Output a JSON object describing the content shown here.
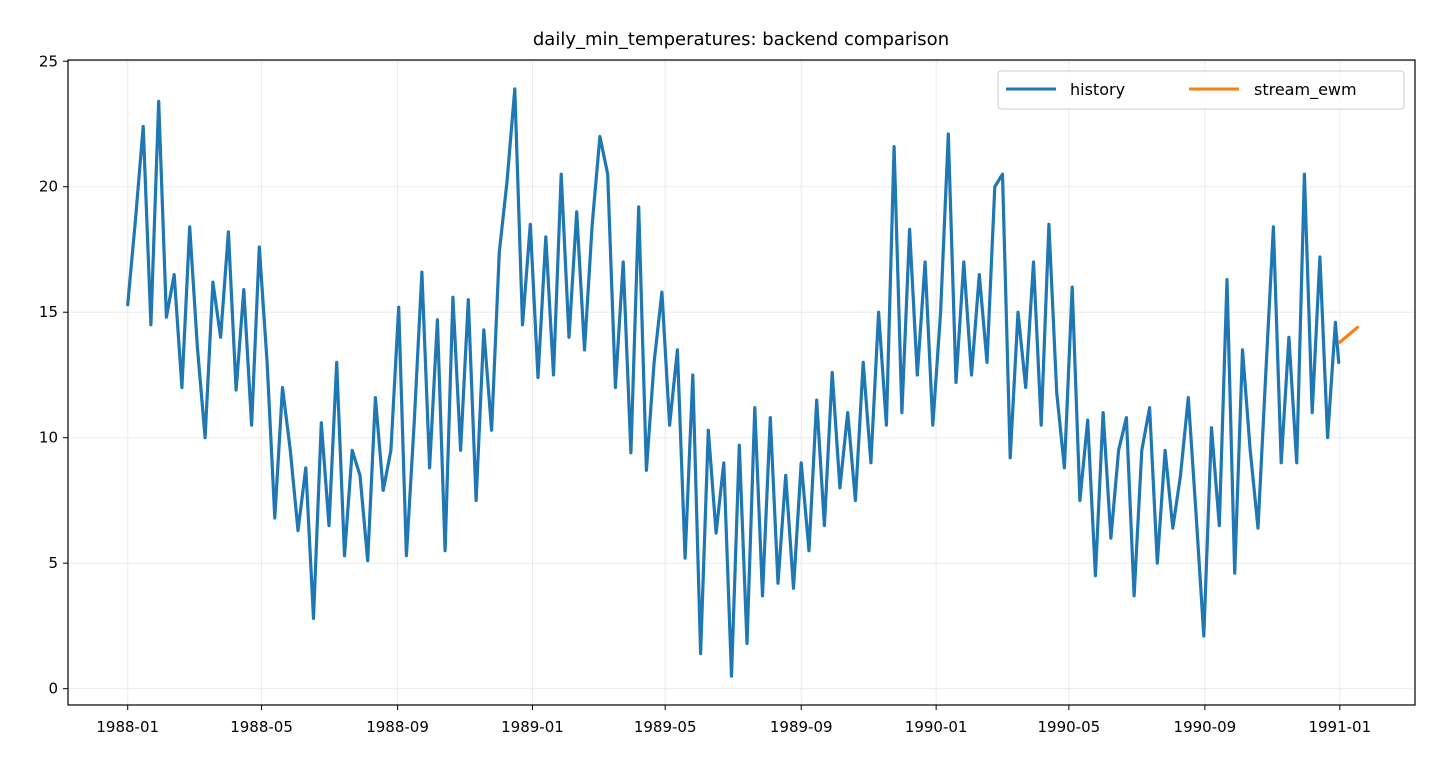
{
  "chart_data": {
    "type": "line",
    "title": "daily_min_temperatures: backend comparison",
    "xlabel": "",
    "ylabel": "",
    "xlim": [
      "1987-11-08",
      "1991-03-10"
    ],
    "ylim": [
      -0.65,
      25.05
    ],
    "x_ticks": [
      "1988-01",
      "1988-05",
      "1988-09",
      "1989-01",
      "1989-05",
      "1989-09",
      "1990-01",
      "1990-05",
      "1990-09",
      "1991-01"
    ],
    "y_ticks": [
      0,
      5,
      10,
      15,
      20,
      25
    ],
    "grid": true,
    "legend": {
      "placement": "top-right",
      "columns": 2
    },
    "series": [
      {
        "name": "history",
        "color": "#1f77b4",
        "points": [
          [
            "1988-01-01",
            15.3
          ],
          [
            "1988-01-08",
            18.7
          ],
          [
            "1988-01-15",
            22.4
          ],
          [
            "1988-01-22",
            14.5
          ],
          [
            "1988-01-29",
            23.4
          ],
          [
            "1988-02-05",
            14.8
          ],
          [
            "1988-02-12",
            16.5
          ],
          [
            "1988-02-19",
            12.0
          ],
          [
            "1988-02-26",
            18.4
          ],
          [
            "1988-03-04",
            13.6
          ],
          [
            "1988-03-11",
            10.0
          ],
          [
            "1988-03-18",
            16.2
          ],
          [
            "1988-03-25",
            14.0
          ],
          [
            "1988-04-01",
            18.2
          ],
          [
            "1988-04-08",
            11.9
          ],
          [
            "1988-04-15",
            15.9
          ],
          [
            "1988-04-22",
            10.5
          ],
          [
            "1988-04-29",
            17.6
          ],
          [
            "1988-05-06",
            13.0
          ],
          [
            "1988-05-13",
            6.8
          ],
          [
            "1988-05-20",
            12.0
          ],
          [
            "1988-05-27",
            9.5
          ],
          [
            "1988-06-03",
            6.3
          ],
          [
            "1988-06-10",
            8.8
          ],
          [
            "1988-06-17",
            2.8
          ],
          [
            "1988-06-24",
            10.6
          ],
          [
            "1988-07-01",
            6.5
          ],
          [
            "1988-07-08",
            13.0
          ],
          [
            "1988-07-15",
            5.3
          ],
          [
            "1988-07-22",
            9.5
          ],
          [
            "1988-07-29",
            8.5
          ],
          [
            "1988-08-05",
            5.1
          ],
          [
            "1988-08-12",
            11.6
          ],
          [
            "1988-08-19",
            7.9
          ],
          [
            "1988-08-26",
            9.5
          ],
          [
            "1988-09-02",
            15.2
          ],
          [
            "1988-09-09",
            5.3
          ],
          [
            "1988-09-16",
            10.6
          ],
          [
            "1988-09-23",
            16.6
          ],
          [
            "1988-09-30",
            8.8
          ],
          [
            "1988-10-07",
            14.7
          ],
          [
            "1988-10-14",
            5.5
          ],
          [
            "1988-10-21",
            15.6
          ],
          [
            "1988-10-28",
            9.5
          ],
          [
            "1988-11-04",
            15.5
          ],
          [
            "1988-11-11",
            7.5
          ],
          [
            "1988-11-18",
            14.3
          ],
          [
            "1988-11-25",
            10.3
          ],
          [
            "1988-12-02",
            17.4
          ],
          [
            "1988-12-09",
            20.2
          ],
          [
            "1988-12-16",
            23.9
          ],
          [
            "1988-12-23",
            14.5
          ],
          [
            "1988-12-30",
            18.5
          ],
          [
            "1989-01-06",
            12.4
          ],
          [
            "1989-01-13",
            18.0
          ],
          [
            "1989-01-20",
            12.5
          ],
          [
            "1989-01-27",
            20.5
          ],
          [
            "1989-02-03",
            14.0
          ],
          [
            "1989-02-10",
            19.0
          ],
          [
            "1989-02-17",
            13.5
          ],
          [
            "1989-02-24",
            18.5
          ],
          [
            "1989-03-03",
            22.0
          ],
          [
            "1989-03-10",
            20.5
          ],
          [
            "1989-03-17",
            12.0
          ],
          [
            "1989-03-24",
            17.0
          ],
          [
            "1989-03-31",
            9.4
          ],
          [
            "1989-04-07",
            19.2
          ],
          [
            "1989-04-14",
            8.7
          ],
          [
            "1989-04-21",
            13.0
          ],
          [
            "1989-04-28",
            15.8
          ],
          [
            "1989-05-05",
            10.5
          ],
          [
            "1989-05-12",
            13.5
          ],
          [
            "1989-05-19",
            5.2
          ],
          [
            "1989-05-26",
            12.5
          ],
          [
            "1989-06-02",
            1.4
          ],
          [
            "1989-06-09",
            10.3
          ],
          [
            "1989-06-16",
            6.2
          ],
          [
            "1989-06-23",
            9.0
          ],
          [
            "1989-06-30",
            0.5
          ],
          [
            "1989-07-07",
            9.7
          ],
          [
            "1989-07-14",
            1.8
          ],
          [
            "1989-07-21",
            11.2
          ],
          [
            "1989-07-28",
            3.7
          ],
          [
            "1989-08-04",
            10.8
          ],
          [
            "1989-08-11",
            4.2
          ],
          [
            "1989-08-18",
            8.5
          ],
          [
            "1989-08-25",
            4.0
          ],
          [
            "1989-09-01",
            9.0
          ],
          [
            "1989-09-08",
            5.5
          ],
          [
            "1989-09-15",
            11.5
          ],
          [
            "1989-09-22",
            6.5
          ],
          [
            "1989-09-29",
            12.6
          ],
          [
            "1989-10-06",
            8.0
          ],
          [
            "1989-10-13",
            11.0
          ],
          [
            "1989-10-20",
            7.5
          ],
          [
            "1989-10-27",
            13.0
          ],
          [
            "1989-11-03",
            9.0
          ],
          [
            "1989-11-10",
            15.0
          ],
          [
            "1989-11-17",
            10.5
          ],
          [
            "1989-11-24",
            21.6
          ],
          [
            "1989-12-01",
            11.0
          ],
          [
            "1989-12-08",
            18.3
          ],
          [
            "1989-12-15",
            12.5
          ],
          [
            "1989-12-22",
            17.0
          ],
          [
            "1989-12-29",
            10.5
          ],
          [
            "1990-01-05",
            15.0
          ],
          [
            "1990-01-12",
            22.1
          ],
          [
            "1990-01-19",
            12.2
          ],
          [
            "1990-01-26",
            17.0
          ],
          [
            "1990-02-02",
            12.5
          ],
          [
            "1990-02-09",
            16.5
          ],
          [
            "1990-02-16",
            13.0
          ],
          [
            "1990-02-23",
            20.0
          ],
          [
            "1990-03-02",
            20.5
          ],
          [
            "1990-03-09",
            9.2
          ],
          [
            "1990-03-16",
            15.0
          ],
          [
            "1990-03-23",
            12.0
          ],
          [
            "1990-03-30",
            17.0
          ],
          [
            "1990-04-06",
            10.5
          ],
          [
            "1990-04-13",
            18.5
          ],
          [
            "1990-04-20",
            11.8
          ],
          [
            "1990-04-27",
            8.8
          ],
          [
            "1990-05-04",
            16.0
          ],
          [
            "1990-05-11",
            7.5
          ],
          [
            "1990-05-18",
            10.7
          ],
          [
            "1990-05-25",
            4.5
          ],
          [
            "1990-06-01",
            11.0
          ],
          [
            "1990-06-08",
            6.0
          ],
          [
            "1990-06-15",
            9.5
          ],
          [
            "1990-06-22",
            10.8
          ],
          [
            "1990-06-29",
            3.7
          ],
          [
            "1990-07-06",
            9.5
          ],
          [
            "1990-07-13",
            11.2
          ],
          [
            "1990-07-20",
            5.0
          ],
          [
            "1990-07-27",
            9.5
          ],
          [
            "1990-08-03",
            6.4
          ],
          [
            "1990-08-10",
            8.5
          ],
          [
            "1990-08-17",
            11.6
          ],
          [
            "1990-08-24",
            7.0
          ],
          [
            "1990-08-31",
            2.1
          ],
          [
            "1990-09-07",
            10.4
          ],
          [
            "1990-09-14",
            6.5
          ],
          [
            "1990-09-21",
            16.3
          ],
          [
            "1990-09-28",
            4.6
          ],
          [
            "1990-10-05",
            13.5
          ],
          [
            "1990-10-12",
            9.5
          ],
          [
            "1990-10-19",
            6.4
          ],
          [
            "1990-10-26",
            12.5
          ],
          [
            "1990-11-02",
            18.4
          ],
          [
            "1990-11-09",
            9.0
          ],
          [
            "1990-11-16",
            14.0
          ],
          [
            "1990-11-23",
            9.0
          ],
          [
            "1990-11-30",
            20.5
          ],
          [
            "1990-12-07",
            11.0
          ],
          [
            "1990-12-14",
            17.2
          ],
          [
            "1990-12-21",
            10.0
          ],
          [
            "1990-12-28",
            14.6
          ],
          [
            "1990-12-31",
            13.0
          ]
        ]
      },
      {
        "name": "stream_ewm",
        "color": "#ff7f0e",
        "points": [
          [
            "1991-01-01",
            13.8
          ],
          [
            "1991-01-09",
            14.1
          ],
          [
            "1991-01-17",
            14.4
          ]
        ]
      }
    ]
  }
}
